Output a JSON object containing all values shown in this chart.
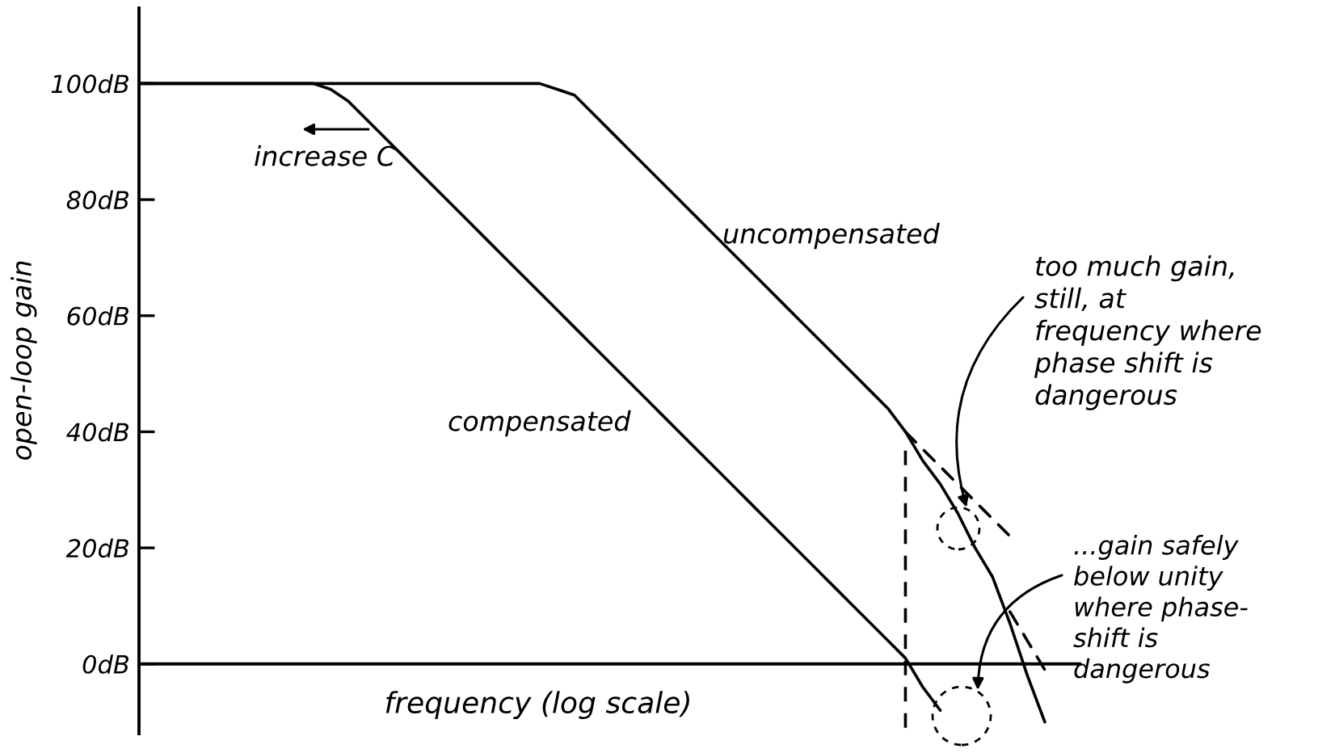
{
  "chart_data": {
    "type": "line",
    "xlabel": "frequency (log scale)",
    "ylabel": "open-loop gain",
    "categories": [
      null,
      null,
      null,
      null,
      null,
      null,
      null,
      null,
      null,
      null,
      null,
      null,
      null,
      null,
      null,
      null,
      null,
      null,
      null,
      null,
      null,
      null,
      null,
      null,
      null,
      null,
      null,
      null,
      null,
      null,
      null,
      null,
      null,
      null,
      null,
      null,
      null,
      null,
      null,
      null,
      null,
      null,
      null,
      null,
      null,
      null,
      null,
      null,
      null,
      null,
      null,
      null,
      null,
      null,
      null
    ],
    "series": [
      {
        "name": "uncompensated",
        "color": "#000000",
        "values": [
          100,
          100,
          100,
          100,
          100,
          100,
          100,
          100,
          100,
          100,
          100,
          100,
          100,
          100,
          100,
          100,
          100,
          100,
          100,
          100,
          100,
          100,
          100,
          100,
          99,
          98,
          95,
          92,
          89,
          86,
          83,
          80,
          77,
          74,
          71,
          68,
          65,
          62,
          59,
          56,
          53,
          50,
          47,
          44,
          40,
          35,
          31,
          26,
          20,
          15,
          7,
          -2,
          -10,
          null,
          null
        ],
        "errors": [
          null,
          null,
          null,
          null,
          null,
          null,
          null,
          null,
          null,
          null,
          null,
          null,
          null,
          null,
          null,
          null,
          null,
          null,
          null,
          null,
          null,
          null,
          null,
          null,
          null,
          null,
          null,
          null,
          null,
          null,
          null,
          null,
          null,
          null,
          null,
          null,
          null,
          null,
          null,
          null,
          null,
          null,
          null,
          null,
          [
            -11,
            38
          ],
          null,
          null,
          null,
          null,
          null,
          null,
          null,
          null,
          null,
          null
        ]
      },
      {
        "name": "compensated",
        "color": "#000000",
        "values": [
          100,
          100,
          100,
          100,
          100,
          100,
          100,
          100,
          100,
          100,
          100,
          99,
          97,
          94,
          91,
          88,
          85,
          82,
          79,
          76,
          73,
          70,
          67,
          64,
          61,
          58,
          55,
          52,
          49,
          46,
          43,
          40,
          37,
          34,
          31,
          28,
          25,
          22,
          19,
          16,
          13,
          10,
          7,
          4,
          1,
          -4,
          -8,
          null,
          null,
          null,
          null,
          null,
          null,
          null,
          null
        ]
      },
      {
        "color": "#000000",
        "line_style": "dashed",
        "values": [
          null,
          null,
          null,
          null,
          null,
          null,
          null,
          null,
          null,
          null,
          null,
          null,
          null,
          null,
          null,
          null,
          null,
          null,
          null,
          null,
          null,
          null,
          null,
          null,
          null,
          null,
          null,
          null,
          null,
          null,
          null,
          null,
          null,
          null,
          null,
          null,
          null,
          null,
          null,
          null,
          null,
          null,
          null,
          null,
          40,
          37,
          34,
          31,
          28,
          25,
          22,
          null,
          null,
          null,
          null
        ]
      },
      {
        "color": "#000000",
        "line_style": "dashed",
        "values": [
          null,
          null,
          null,
          null,
          null,
          null,
          null,
          null,
          null,
          null,
          null,
          null,
          null,
          null,
          null,
          null,
          null,
          null,
          null,
          null,
          null,
          null,
          null,
          null,
          null,
          null,
          null,
          null,
          null,
          null,
          null,
          null,
          null,
          null,
          null,
          null,
          null,
          null,
          null,
          null,
          null,
          null,
          null,
          null,
          null,
          null,
          null,
          null,
          null,
          null,
          9,
          4,
          -1,
          null,
          null
        ]
      }
    ],
    "ylim": [
      -12,
      113
    ],
    "yticks": [
      {
        "value": 0,
        "label": "0dB"
      },
      {
        "value": 20,
        "label": "20dB"
      },
      {
        "value": 40,
        "label": "40dB"
      },
      {
        "value": 60,
        "label": "60dB"
      },
      {
        "value": 80,
        "label": "80dB"
      },
      {
        "value": 100,
        "label": "100dB"
      }
    ],
    "tick_labels": "y",
    "annotations": [
      "increase C",
      "too much gain,\nstill, at\nfrequency where\nphase shift is\ndangerous",
      "...gain safely\nbelow unity\nwhere phase-\nshift is\ndangerous"
    ]
  }
}
